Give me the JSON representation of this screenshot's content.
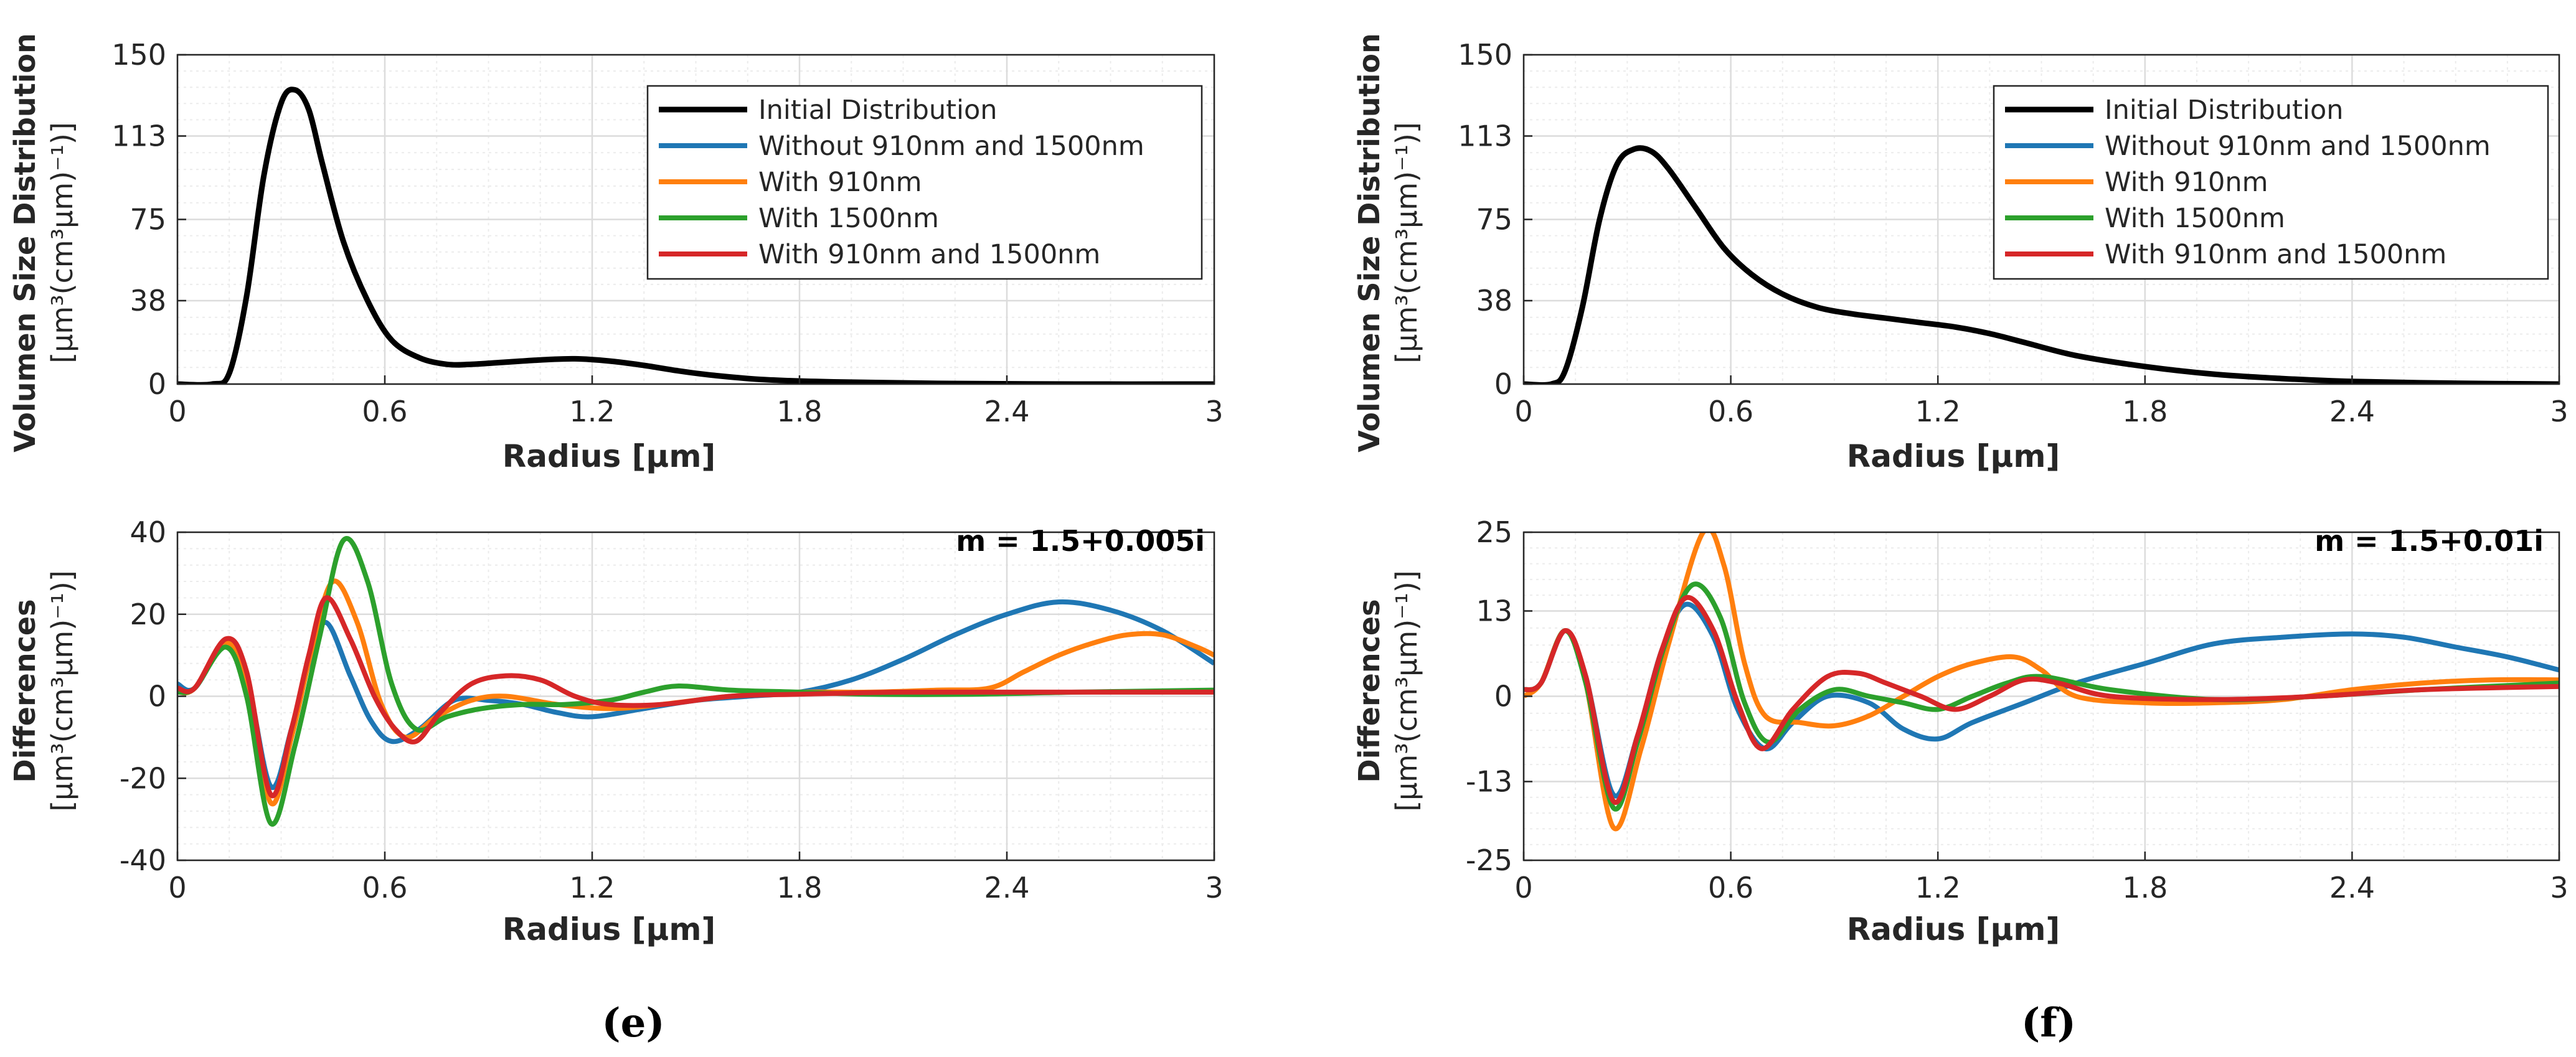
{
  "colors": {
    "initial": "#000000",
    "without": "#1f77b4",
    "with910": "#ff7f0e",
    "with1500": "#2ca02c",
    "both": "#d62728",
    "grid": "#dcdcdc",
    "minor_grid": "#ececec",
    "axis": "#262626"
  },
  "legend": [
    {
      "key": "initial",
      "label": "Initial Distribution"
    },
    {
      "key": "without",
      "label": "Without 910nm and 1500nm"
    },
    {
      "key": "with910",
      "label": "With 910nm"
    },
    {
      "key": "with1500",
      "label": "With 1500nm"
    },
    {
      "key": "both",
      "label": "With 910nm and 1500nm"
    }
  ],
  "labels": {
    "xlabel": "Radius [μm]",
    "vsd_ylabel_line1": "Volumen Size Distribution",
    "vsd_ylabel_line2": "[μm³(cm³μm)⁻¹)]",
    "diff_ylabel_line1": "Differences",
    "diff_ylabel_line2": "[μm³(cm³μm)⁻¹)]",
    "panel_e": "(e)",
    "panel_f": "(f)",
    "annot_e": "m = 1.5+0.005i",
    "annot_f": "m = 1.5+0.01i"
  },
  "chart_data": [
    {
      "id": "e-top",
      "type": "line",
      "xlim": [
        0,
        3
      ],
      "ylim": [
        0,
        150
      ],
      "xticks": [
        "0",
        "0.6",
        "1.2",
        "1.8",
        "2.4",
        "3"
      ],
      "yticks": [
        "0",
        "38",
        "75",
        "113",
        "150"
      ],
      "grid": true,
      "legend_position": "top-right",
      "series": [
        {
          "name": "Initial Distribution",
          "key": "initial",
          "x": [
            0,
            0.1,
            0.15,
            0.2,
            0.25,
            0.3,
            0.34,
            0.38,
            0.42,
            0.48,
            0.55,
            0.62,
            0.7,
            0.78,
            0.85,
            0.95,
            1.05,
            1.15,
            1.25,
            1.35,
            1.45,
            1.55,
            1.7,
            1.9,
            2.2,
            2.6,
            3.0
          ],
          "y": [
            0,
            0,
            5,
            40,
            95,
            128,
            134,
            125,
            100,
            65,
            38,
            20,
            12,
            9,
            9,
            10,
            11,
            11.5,
            10.5,
            8.5,
            6,
            4,
            2,
            1,
            0.3,
            0,
            0
          ]
        }
      ]
    },
    {
      "id": "f-top",
      "type": "line",
      "xlim": [
        0,
        3
      ],
      "ylim": [
        0,
        150
      ],
      "xticks": [
        "0",
        "0.6",
        "1.2",
        "1.8",
        "2.4",
        "3"
      ],
      "yticks": [
        "0",
        "38",
        "75",
        "113",
        "150"
      ],
      "grid": true,
      "legend_position": "top-right",
      "series": [
        {
          "name": "Initial Distribution",
          "key": "initial",
          "x": [
            0,
            0.08,
            0.12,
            0.17,
            0.22,
            0.27,
            0.32,
            0.37,
            0.42,
            0.5,
            0.58,
            0.66,
            0.75,
            0.85,
            0.95,
            1.05,
            1.15,
            1.25,
            1.35,
            1.45,
            1.6,
            1.8,
            2.0,
            2.2,
            2.4,
            2.7,
            3.0
          ],
          "y": [
            0,
            0,
            6,
            35,
            75,
            100,
            107,
            106,
            98,
            80,
            62,
            50,
            41,
            35,
            32,
            30,
            28,
            26,
            23,
            19,
            13,
            8,
            4.5,
            2.5,
            1.2,
            0.4,
            0
          ]
        }
      ]
    },
    {
      "id": "e-bottom",
      "type": "line",
      "xlim": [
        0,
        3
      ],
      "ylim": [
        -40,
        40
      ],
      "xticks": [
        "0",
        "0.6",
        "1.2",
        "1.8",
        "2.4",
        "3"
      ],
      "yticks": [
        "-40",
        "-20",
        "0",
        "20",
        "40"
      ],
      "grid": true,
      "series": [
        {
          "name": "Without 910nm and 1500nm",
          "key": "without",
          "x": [
            0,
            0.05,
            0.14,
            0.2,
            0.27,
            0.33,
            0.38,
            0.43,
            0.5,
            0.56,
            0.62,
            0.7,
            0.8,
            0.9,
            1.0,
            1.1,
            1.2,
            1.35,
            1.5,
            1.65,
            1.8,
            1.95,
            2.1,
            2.25,
            2.4,
            2.55,
            2.7,
            2.85,
            3.0
          ],
          "y": [
            3,
            2,
            13,
            5,
            -22,
            -8,
            8,
            18,
            5,
            -6,
            -11,
            -8,
            -1,
            -1,
            -2,
            -4,
            -5,
            -3,
            -1,
            0,
            1,
            4,
            9,
            15,
            20,
            23,
            21,
            16,
            8
          ]
        },
        {
          "name": "With 910nm",
          "key": "with910",
          "x": [
            0,
            0.05,
            0.14,
            0.2,
            0.27,
            0.33,
            0.39,
            0.45,
            0.52,
            0.59,
            0.66,
            0.75,
            0.85,
            0.95,
            1.1,
            1.25,
            1.4,
            1.6,
            1.8,
            2.0,
            2.2,
            2.35,
            2.45,
            2.55,
            2.65,
            2.75,
            2.85,
            2.95,
            3.0
          ],
          "y": [
            1,
            2,
            13,
            3,
            -26,
            -10,
            12,
            28,
            18,
            -2,
            -10,
            -5,
            -1,
            0,
            -2,
            -3,
            -2,
            0,
            1,
            1,
            1.5,
            2,
            6,
            10,
            13,
            15,
            15,
            12,
            10
          ]
        },
        {
          "name": "With 1500nm",
          "key": "with1500",
          "x": [
            0,
            0.05,
            0.14,
            0.2,
            0.27,
            0.34,
            0.41,
            0.48,
            0.55,
            0.62,
            0.69,
            0.78,
            0.88,
            1.0,
            1.12,
            1.25,
            1.35,
            1.45,
            1.6,
            1.8,
            2.0,
            2.3,
            2.6,
            3.0
          ],
          "y": [
            1,
            2,
            12,
            0,
            -31,
            -12,
            14,
            38,
            28,
            3,
            -8,
            -5,
            -3,
            -2,
            -2,
            -1,
            1,
            2.5,
            1.5,
            1,
            0.5,
            0.5,
            1,
            1.5
          ]
        },
        {
          "name": "With 910nm and 1500nm",
          "key": "both",
          "x": [
            0,
            0.05,
            0.14,
            0.2,
            0.27,
            0.33,
            0.38,
            0.43,
            0.5,
            0.57,
            0.63,
            0.69,
            0.76,
            0.85,
            0.95,
            1.05,
            1.15,
            1.25,
            1.4,
            1.6,
            1.8,
            2.1,
            2.5,
            3.0
          ],
          "y": [
            2,
            2,
            14,
            6,
            -24,
            -8,
            10,
            24,
            14,
            0,
            -8,
            -11,
            -4,
            3,
            5,
            4,
            0,
            -2,
            -2,
            0,
            0.5,
            1,
            1,
            1
          ]
        }
      ]
    },
    {
      "id": "f-bottom",
      "type": "line",
      "xlim": [
        0,
        3
      ],
      "ylim": [
        -25,
        25
      ],
      "xticks": [
        "0",
        "0.6",
        "1.2",
        "1.8",
        "2.4",
        "3"
      ],
      "yticks": [
        "-25",
        "-13",
        "0",
        "13",
        "25"
      ],
      "grid": true,
      "series": [
        {
          "name": "Without 910nm and 1500nm",
          "key": "without",
          "x": [
            0,
            0.05,
            0.12,
            0.18,
            0.26,
            0.33,
            0.4,
            0.47,
            0.55,
            0.62,
            0.7,
            0.78,
            0.88,
            1.0,
            1.1,
            1.2,
            1.3,
            1.45,
            1.6,
            1.8,
            2.0,
            2.2,
            2.4,
            2.55,
            2.7,
            2.85,
            3.0
          ],
          "y": [
            1,
            2,
            10,
            3,
            -15,
            -6,
            7,
            14,
            9,
            -2,
            -8,
            -4,
            0,
            -1,
            -5,
            -6.5,
            -4,
            -1,
            2,
            5,
            8,
            9,
            9.5,
            9,
            7.5,
            6,
            4
          ]
        },
        {
          "name": "With 910nm",
          "key": "with910",
          "x": [
            0,
            0.05,
            0.12,
            0.18,
            0.26,
            0.34,
            0.42,
            0.52,
            0.58,
            0.64,
            0.7,
            0.8,
            0.9,
            1.0,
            1.1,
            1.2,
            1.3,
            1.42,
            1.5,
            1.6,
            1.8,
            2.0,
            2.2,
            2.4,
            2.6,
            2.8,
            3.0
          ],
          "y": [
            0,
            2,
            10,
            2,
            -20,
            -8,
            8,
            25,
            20,
            5,
            -3,
            -4,
            -4.5,
            -3,
            0,
            3,
            5,
            6,
            4,
            0,
            -1,
            -1,
            -0.5,
            1,
            2,
            2.5,
            2.5
          ]
        },
        {
          "name": "With 1500nm",
          "key": "with1500",
          "x": [
            0,
            0.05,
            0.12,
            0.18,
            0.26,
            0.33,
            0.41,
            0.49,
            0.57,
            0.64,
            0.71,
            0.8,
            0.9,
            1.0,
            1.1,
            1.2,
            1.3,
            1.4,
            1.5,
            1.7,
            2.0,
            2.3,
            2.6,
            3.0
          ],
          "y": [
            1,
            2,
            10,
            2,
            -17,
            -7,
            8,
            17,
            12,
            -1,
            -7,
            -2,
            1,
            0,
            -1,
            -2,
            0,
            2,
            3,
            1,
            -0.5,
            0,
            1,
            2
          ]
        },
        {
          "name": "With 910nm and 1500nm",
          "key": "both",
          "x": [
            0,
            0.05,
            0.12,
            0.18,
            0.26,
            0.33,
            0.4,
            0.47,
            0.55,
            0.62,
            0.69,
            0.78,
            0.88,
            0.97,
            1.05,
            1.15,
            1.25,
            1.35,
            1.45,
            1.55,
            1.7,
            2.0,
            2.3,
            2.6,
            3.0
          ],
          "y": [
            1,
            2,
            10,
            3,
            -16,
            -6,
            7,
            15,
            10,
            -1,
            -8,
            -2,
            3,
            3.5,
            2,
            0,
            -2,
            0,
            2.5,
            2,
            0,
            -0.5,
            0,
            1,
            1.5
          ]
        }
      ]
    }
  ]
}
